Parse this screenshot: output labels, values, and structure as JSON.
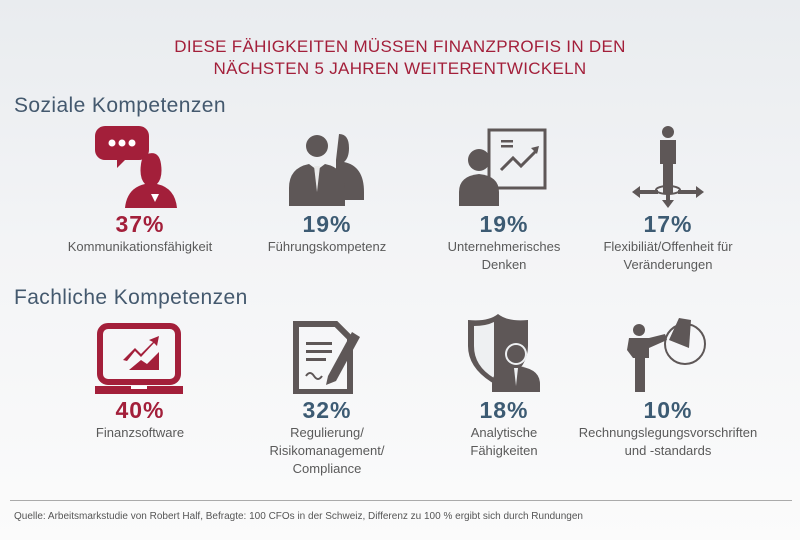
{
  "title": {
    "line1": "DIESE FÄHIGKEITEN MÜSSEN FINANZPROFIS IN DEN",
    "line2": "NÄCHSTEN 5 JAHREN WEITERENTWICKELN"
  },
  "colors": {
    "accent": "#a31f3a",
    "secondary": "#3d5b73",
    "icon_gray": "#5e5757"
  },
  "sections": [
    {
      "heading": "Soziale Kompetenzen",
      "items": [
        {
          "pct": "37%",
          "label1": "Kommunikationsfähigkeit",
          "label2": "",
          "label3": "",
          "icon": "speech-bubble-person-icon",
          "highlight": true
        },
        {
          "pct": "19%",
          "label1": "Führungskompetenz",
          "label2": "",
          "label3": "",
          "icon": "two-people-icon",
          "highlight": false
        },
        {
          "pct": "19%",
          "label1": "Unternehmerisches",
          "label2": "Denken",
          "label3": "",
          "icon": "presenter-chart-icon",
          "highlight": false
        },
        {
          "pct": "17%",
          "label1": "Flexibiliät/Offenheit für",
          "label2": "Veränderungen",
          "label3": "",
          "icon": "person-arrows-icon",
          "highlight": false
        }
      ]
    },
    {
      "heading": "Fachliche Kompetenzen",
      "items": [
        {
          "pct": "40%",
          "label1": "Finanzsoftware",
          "label2": "",
          "label3": "",
          "icon": "laptop-chart-icon",
          "highlight": true
        },
        {
          "pct": "32%",
          "label1": "Regulierung/",
          "label2": "Risikomanagement/",
          "label3": "Compliance",
          "icon": "document-pen-icon",
          "highlight": false
        },
        {
          "pct": "18%",
          "label1": "Analytische",
          "label2": "Fähigkeiten",
          "label3": "",
          "icon": "shield-person-icon",
          "highlight": false
        },
        {
          "pct": "10%",
          "label1": "Rechnungslegungsvorschriften",
          "label2": "und -standards",
          "label3": "",
          "icon": "person-pie-chart-icon",
          "highlight": false
        }
      ]
    }
  ],
  "source": "Quelle: Arbeitsmarkstudie von Robert Half, Befragte: 100 CFOs in der Schweiz, Differenz zu 100 % ergibt sich durch Rundungen"
}
